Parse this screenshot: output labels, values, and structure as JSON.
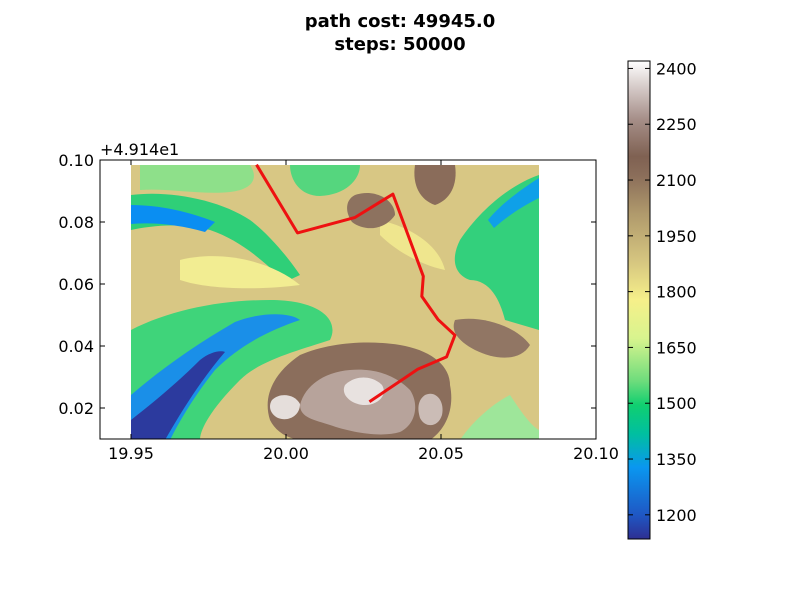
{
  "chart_data": {
    "type": "heatmap",
    "title_lines": [
      "path cost: 49945.0",
      "steps: 50000"
    ],
    "x_ticks": [
      "19.95",
      "20.00",
      "20.05",
      "20.10"
    ],
    "x_tick_values": [
      19.95,
      20.0,
      20.05,
      20.1
    ],
    "xlim": [
      19.94,
      20.1
    ],
    "y_ticks": [
      "0.02",
      "0.04",
      "0.06",
      "0.08",
      "0.10"
    ],
    "y_tick_values": [
      0.02,
      0.04,
      0.06,
      0.08,
      0.1
    ],
    "ylim": [
      0.01,
      0.1
    ],
    "y_offset_label": "+4.914e1",
    "data_extent": {
      "x": [
        19.95,
        20.082
      ],
      "y": [
        0.01,
        0.099
      ]
    },
    "colorbar": {
      "colormap": "terrain",
      "ticks": [
        "1200",
        "1350",
        "1500",
        "1650",
        "1800",
        "1950",
        "2100",
        "2250",
        "2400"
      ],
      "tick_values": [
        1200,
        1350,
        1500,
        1650,
        1800,
        1950,
        2100,
        2250,
        2400
      ],
      "range": [
        1135,
        2420
      ]
    },
    "path": {
      "color": "#ee1111",
      "points": [
        [
          19.9905,
          0.0985
        ],
        [
          20.0037,
          0.0765
        ],
        [
          20.0223,
          0.0815
        ],
        [
          20.0345,
          0.089
        ],
        [
          20.0443,
          0.0625
        ],
        [
          20.0438,
          0.056
        ],
        [
          20.0491,
          0.0485
        ],
        [
          20.0545,
          0.0435
        ],
        [
          20.0518,
          0.0365
        ],
        [
          20.0425,
          0.0325
        ],
        [
          20.0269,
          0.022
        ]
      ]
    },
    "grid": false
  }
}
